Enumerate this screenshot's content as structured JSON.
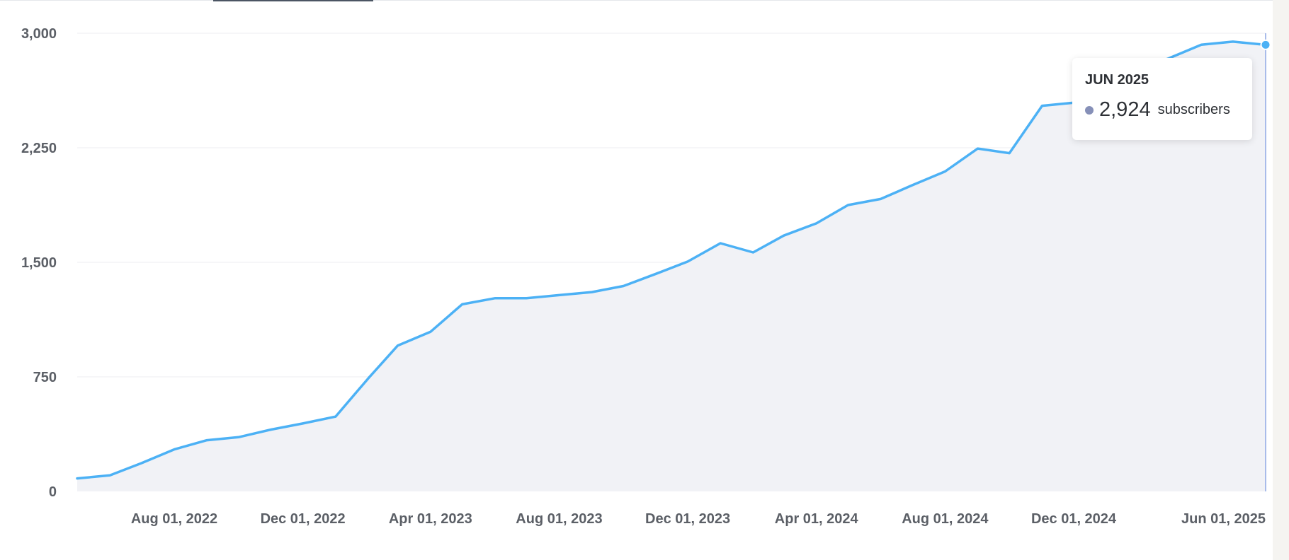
{
  "chart_data": {
    "type": "area",
    "ylim": [
      0,
      3000
    ],
    "y_ticks": [
      0,
      750,
      1500,
      2250,
      3000
    ],
    "y_tick_labels": [
      "0",
      "750",
      "1,500",
      "2,250",
      "3,000"
    ],
    "x_ticks": [
      {
        "date": "2022-08-01",
        "label": "Aug 01, 2022"
      },
      {
        "date": "2022-12-01",
        "label": "Dec 01, 2022"
      },
      {
        "date": "2023-04-01",
        "label": "Apr 01, 2023"
      },
      {
        "date": "2023-08-01",
        "label": "Aug 01, 2023"
      },
      {
        "date": "2023-12-01",
        "label": "Dec 01, 2023"
      },
      {
        "date": "2024-04-01",
        "label": "Apr 01, 2024"
      },
      {
        "date": "2024-08-01",
        "label": "Aug 01, 2024"
      },
      {
        "date": "2024-12-01",
        "label": "Dec 01, 2024"
      },
      {
        "date": "2025-06-01",
        "label": "Jun 01, 2025"
      }
    ],
    "grid": true,
    "series": [
      {
        "x": [
          "2022-05-01",
          "2022-06-01",
          "2022-07-01",
          "2022-08-01",
          "2022-09-01",
          "2022-10-01",
          "2022-11-01",
          "2022-12-01",
          "2023-01-01",
          "2023-02-01",
          "2023-03-01",
          "2023-04-01",
          "2023-05-01",
          "2023-06-01",
          "2023-07-01",
          "2023-08-01",
          "2023-09-01",
          "2023-10-01",
          "2023-11-01",
          "2023-12-01",
          "2024-01-01",
          "2024-02-01",
          "2024-03-01",
          "2024-04-01",
          "2024-05-01",
          "2024-06-01",
          "2024-07-01",
          "2024-08-01",
          "2024-09-01",
          "2024-10-01",
          "2024-11-01",
          "2024-12-01",
          "2025-01-01",
          "2025-02-01",
          "2025-03-01",
          "2025-04-01",
          "2025-05-01",
          "2025-06-01"
        ],
        "values": [
          85,
          105,
          185,
          275,
          335,
          355,
          405,
          445,
          490,
          740,
          955,
          1045,
          1225,
          1265,
          1265,
          1285,
          1305,
          1345,
          1425,
          1505,
          1625,
          1565,
          1675,
          1755,
          1875,
          1915,
          2005,
          2095,
          2245,
          2215,
          2525,
          2545,
          2625,
          2765,
          2835,
          2925,
          2945,
          2924
        ],
        "color": "#4cb1f5",
        "fill": "#f1f2f6"
      }
    ]
  },
  "tooltip": {
    "title": "JUN 2025",
    "value": "2,924",
    "unit": "subscribers",
    "dot_color": "#8690b8"
  },
  "colors": {
    "line": "#4cb1f5",
    "area": "#f1f2f6",
    "cursor": "#a9bcea",
    "grid": "#eceef1"
  }
}
